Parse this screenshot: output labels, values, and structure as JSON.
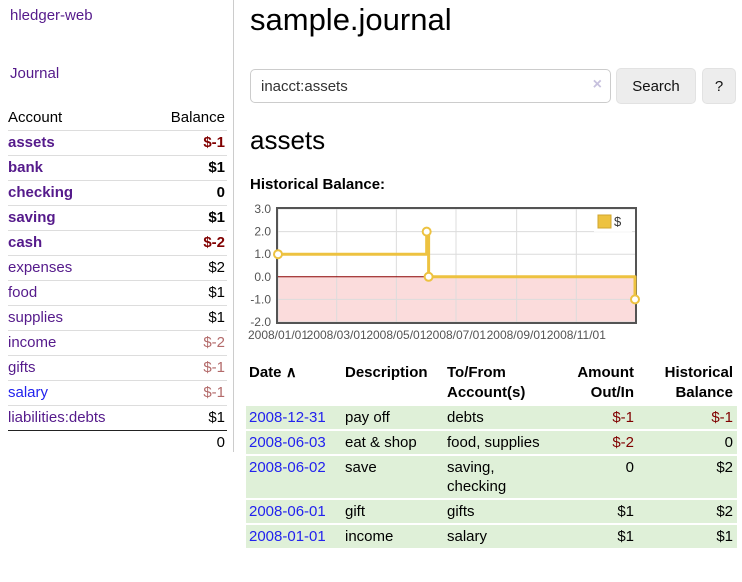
{
  "app": {
    "brand": "hledger-web",
    "nav": {
      "journal": "Journal"
    }
  },
  "sidebar": {
    "columns": {
      "account": "Account",
      "balance": "Balance"
    },
    "accounts": [
      {
        "name": "assets",
        "balance": "$-1"
      },
      {
        "name": "bank",
        "balance": "$1"
      },
      {
        "name": "checking",
        "balance": "0"
      },
      {
        "name": "saving",
        "balance": "$1"
      },
      {
        "name": "cash",
        "balance": "$-2"
      },
      {
        "name": "expenses",
        "balance": "$2"
      },
      {
        "name": "food",
        "balance": "$1"
      },
      {
        "name": "supplies",
        "balance": "$1"
      },
      {
        "name": "income",
        "balance": "$-2"
      },
      {
        "name": "gifts",
        "balance": "$-1"
      },
      {
        "name": "salary",
        "balance": "$-1"
      },
      {
        "name": "liabilities:debts",
        "balance": "$1"
      }
    ],
    "total": "0"
  },
  "header": {
    "title": "sample.journal"
  },
  "search": {
    "value": "inacct:assets",
    "clear_icon": "×",
    "search_button": "Search",
    "help_button": "?"
  },
  "account_page": {
    "heading": "assets"
  },
  "register": {
    "headers": {
      "date": "Date",
      "sort_icon": "∧",
      "description": "Description",
      "tofrom_line1": "To/From",
      "tofrom_line2": "Account(s)",
      "amount_line1": "Amount",
      "amount_line2": "Out/In",
      "balance_line1": "Historical",
      "balance_line2": "Balance"
    },
    "rows": [
      {
        "date": "2008-12-31",
        "description": "pay off",
        "accounts": "debts",
        "amount": "$-1",
        "balance": "$-1"
      },
      {
        "date": "2008-06-03",
        "description": "eat & shop",
        "accounts": "food, supplies",
        "amount": "$-2",
        "balance": "0"
      },
      {
        "date": "2008-06-02",
        "description": "save",
        "accounts": "saving,\nchecking",
        "amount": "0",
        "balance": "$2"
      },
      {
        "date": "2008-06-01",
        "description": "gift",
        "accounts": "gifts",
        "amount": "$1",
        "balance": "$2"
      },
      {
        "date": "2008-01-01",
        "description": "income",
        "accounts": "salary",
        "amount": "$1",
        "balance": "$1"
      }
    ]
  },
  "chart_data": {
    "type": "line",
    "title": "Historical Balance:",
    "step": true,
    "series": [
      {
        "name": "$",
        "points": [
          [
            "2008-01-01",
            1.0
          ],
          [
            "2008-06-01",
            2.0
          ],
          [
            "2008-06-03",
            0.0
          ],
          [
            "2008-12-31",
            -1.0
          ]
        ]
      }
    ],
    "xlim": [
      "2008-01-01",
      "2008-12-31"
    ],
    "ylim": [
      -2.0,
      3.0
    ],
    "xticks": [
      {
        "v": "2008-01-01",
        "label": "2008/01/01"
      },
      {
        "v": "2008-03-01",
        "label": "2008/03/01"
      },
      {
        "v": "2008-05-01",
        "label": "2008/05/01"
      },
      {
        "v": "2008-07-01",
        "label": "2008/07/01"
      },
      {
        "v": "2008-09-01",
        "label": "2008/09/01"
      },
      {
        "v": "2008-11-01",
        "label": "2008/11/01"
      }
    ],
    "yticks": [
      {
        "v": 3,
        "label": "3.0"
      },
      {
        "v": 2,
        "label": "2.0"
      },
      {
        "v": 1,
        "label": "1.0"
      },
      {
        "v": 0,
        "label": "0.0"
      },
      {
        "v": -1,
        "label": "-1.0"
      },
      {
        "v": -2,
        "label": "-2.0"
      }
    ],
    "grid": true,
    "legend_position": "top-right",
    "colors": {
      "line": "#edc240",
      "marker_fill": "#ffffff",
      "legend_swatch_border": "#d0a52f",
      "negative_region": "#fbdcdc",
      "zero_line": "#8b0000",
      "grid": "#dcdcdc",
      "border": "#545454",
      "tick_text": "#545454"
    }
  },
  "colors": {
    "link_purple": "#551a8b",
    "link_blue": "#2222ee",
    "negative_dark": "#800000",
    "negative_muted": "#b36a6a",
    "row_green": "#dff0d8"
  }
}
